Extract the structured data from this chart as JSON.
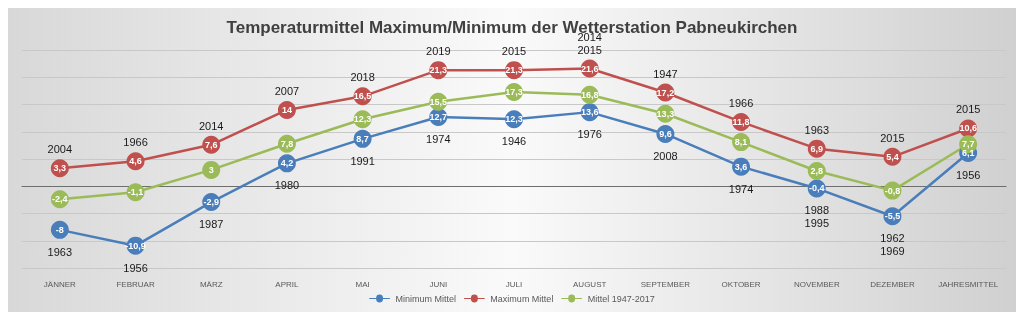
{
  "chart_data": {
    "type": "line",
    "title": "Temperaturmittel Maximum/Minimum der Wetterstation Pabneukirchen",
    "categories": [
      "JÄNNER",
      "FEBRUAR",
      "MÄRZ",
      "APRIL",
      "MAI",
      "JUNI",
      "JULI",
      "AUGUST",
      "SEPTEMBER",
      "OKTOBER",
      "NOVEMBER",
      "DEZEMBER",
      "JAHRESMITTEL"
    ],
    "series": [
      {
        "name": "Minimum Mittel",
        "color": "#4a7ebb",
        "values": [
          -8,
          -10.9,
          -2.9,
          4.2,
          8.7,
          12.7,
          12.3,
          13.6,
          9.6,
          3.6,
          -0.4,
          -5.5,
          6.1
        ],
        "value_labels": [
          "-8",
          "-10,9",
          "-2,9",
          "4,2",
          "8,7",
          "12,7",
          "12,3",
          "13,6",
          "9,6",
          "3,6",
          "-0,4",
          "-5,5",
          "6,1"
        ]
      },
      {
        "name": "Maximum Mittel",
        "color": "#c0504d",
        "values": [
          3.3,
          4.6,
          7.6,
          14,
          16.5,
          21.3,
          21.3,
          21.6,
          17.2,
          11.8,
          6.9,
          5.4,
          10.6
        ],
        "value_labels": [
          "3,3",
          "4,6",
          "7,6",
          "14",
          "16,5",
          "21,3",
          "21,3",
          "21,6",
          "17,2",
          "11,8",
          "6,9",
          "5,4",
          "10,6"
        ]
      },
      {
        "name": "Mittel 1947-2017",
        "color": "#9bbb59",
        "values": [
          -2.4,
          -1.1,
          3,
          7.8,
          12.3,
          15.5,
          17.3,
          16.8,
          13.3,
          8.1,
          2.8,
          -0.8,
          7.7
        ],
        "value_labels": [
          "-2,4",
          "-1,1",
          "3",
          "7,8",
          "12,3",
          "15,5",
          "17,3",
          "16,8",
          "13,3",
          "8,1",
          "2,8",
          "-0,8",
          "7,7"
        ]
      }
    ],
    "ylim": [
      -15,
      25
    ],
    "yticks": [
      {
        "value": -15,
        "label": null
      },
      {
        "value": -10,
        "label": null
      },
      {
        "value": -5,
        "label": null
      },
      {
        "value": 0,
        "label": null
      },
      {
        "value": 5,
        "label": null
      },
      {
        "value": 10,
        "label": null
      },
      {
        "value": 15,
        "label": null
      },
      {
        "value": 20,
        "label": null
      },
      {
        "value": 25,
        "label": null
      }
    ],
    "tick_labels": "x",
    "grid": "y",
    "legend": "bottom",
    "marker": "circle",
    "line_style": "solid",
    "annotations": [
      {
        "text": "2004",
        "x": "JÄNNER",
        "y": 3.3
      },
      {
        "text": "1963",
        "x": "JÄNNER",
        "y": -8
      },
      {
        "text": "1966",
        "x": "FEBRUAR",
        "y": 4.6
      },
      {
        "text": "1956",
        "x": "FEBRUAR",
        "y": -10.9
      },
      {
        "text": "2014",
        "x": "MÄRZ",
        "y": 7.6
      },
      {
        "text": "1987",
        "x": "MÄRZ",
        "y": -2.9
      },
      {
        "text": "2007",
        "x": "APRIL",
        "y": 14
      },
      {
        "text": "1980",
        "x": "APRIL",
        "y": 4.2
      },
      {
        "text": "2018",
        "x": "MAI",
        "y": 16.5
      },
      {
        "text": "1991",
        "x": "MAI",
        "y": 8.7
      },
      {
        "text": "2019",
        "x": "JUNI",
        "y": 21.3
      },
      {
        "text": "1974",
        "x": "JUNI",
        "y": 12.7
      },
      {
        "text": "2015",
        "x": "JULI",
        "y": 21.3
      },
      {
        "text": "1946",
        "x": "JULI",
        "y": 12.3
      },
      {
        "text": "2015",
        "x": "AUGUST",
        "y": 21.6
      },
      {
        "text": "2014",
        "x": "AUGUST",
        "y": 21.6
      },
      {
        "text": "1976",
        "x": "AUGUST",
        "y": 13.6
      },
      {
        "text": "1947",
        "x": "SEPTEMBER",
        "y": 17.2
      },
      {
        "text": "2008",
        "x": "SEPTEMBER",
        "y": 9.6
      },
      {
        "text": "1966",
        "x": "OKTOBER",
        "y": 11.8
      },
      {
        "text": "1974",
        "x": "OKTOBER",
        "y": 3.6
      },
      {
        "text": "1963",
        "x": "NOVEMBER",
        "y": 6.9
      },
      {
        "text": "1988",
        "x": "NOVEMBER",
        "y": -0.4
      },
      {
        "text": "1995",
        "x": "NOVEMBER",
        "y": -0.4
      },
      {
        "text": "2015",
        "x": "DEZEMBER",
        "y": 5.4
      },
      {
        "text": "1962",
        "x": "DEZEMBER",
        "y": -5.5
      },
      {
        "text": "1969",
        "x": "DEZEMBER",
        "y": -5.5
      },
      {
        "text": "2015",
        "x": "JAHRESMITTEL",
        "y": 10.6
      },
      {
        "text": "1956",
        "x": "JAHRESMITTEL",
        "y": 6.1
      }
    ]
  }
}
